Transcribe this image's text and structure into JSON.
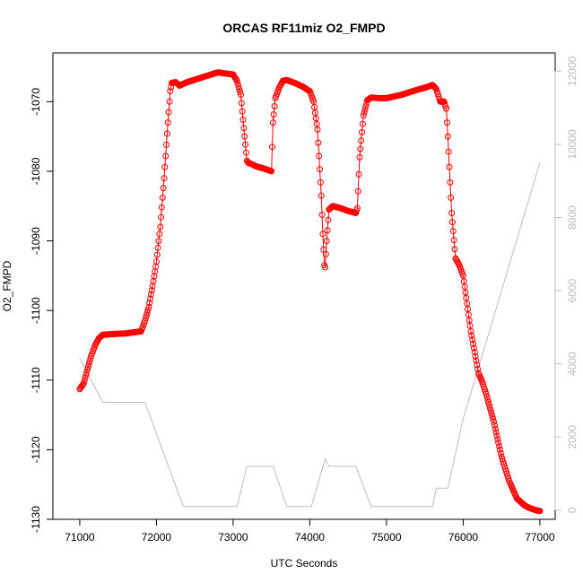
{
  "chart_data": {
    "type": "scatter",
    "title": "ORCAS RF11miz O2_FMPD",
    "xlabel": "UTC Seconds",
    "ylabel": "O2_FMPD",
    "xlim": [
      70650,
      77200
    ],
    "ylim": [
      -1130,
      -1063
    ],
    "y2lim": [
      -250,
      12500
    ],
    "x_ticks": [
      71000,
      72000,
      73000,
      74000,
      75000,
      76000,
      77000
    ],
    "y_ticks": [
      -1130,
      -1120,
      -1110,
      -1100,
      -1090,
      -1080,
      -1070
    ],
    "y2_ticks": [
      0,
      2000,
      4000,
      6000,
      8000,
      10000,
      12000
    ],
    "x_tick_labels": [
      "71000",
      "72000",
      "73000",
      "74000",
      "75000",
      "76000",
      "77000"
    ],
    "y_tick_labels": [
      "-1130",
      "-1120",
      "-1110",
      "-1100",
      "-1090",
      "-1080",
      "-1070"
    ],
    "y2_tick_labels": [
      "0",
      "2000",
      "4000",
      "6000",
      "8000",
      "10000",
      "12000"
    ],
    "colors": {
      "series": "#ff0000",
      "secondary": "#bdbdbd",
      "axis": "#000000"
    },
    "series": [
      {
        "kind": "points",
        "axis": "left",
        "x": [
          71000,
          71050,
          71100,
          71150,
          71200,
          71250,
          71300,
          71400,
          71600,
          71800,
          71850,
          71900,
          71950,
          72000,
          72050,
          72100,
          72150,
          72180,
          72200,
          72250,
          72300,
          72400,
          72600,
          72800,
          73000,
          73050,
          73100,
          73150,
          73180,
          73200,
          73250,
          73300,
          73400,
          73500,
          73520,
          73550,
          73600,
          73650,
          73700,
          73800,
          73900,
          74000,
          74050,
          74100,
          74150,
          74170,
          74190,
          74200,
          74220,
          74250,
          74300,
          74400,
          74500,
          74600,
          74620,
          74650,
          74700,
          74750,
          74800,
          74900,
          75000,
          75200,
          75400,
          75500,
          75600,
          75650,
          75700,
          75750,
          75780,
          75800,
          75850,
          75900,
          75950,
          76000,
          76100,
          76200,
          76250,
          76300,
          76400,
          76500,
          76600,
          76700,
          76800,
          76850,
          76900,
          76950,
          77000
        ],
        "y": [
          -1111.3,
          -1110.5,
          -1108.5,
          -1106.5,
          -1105,
          -1104,
          -1103.5,
          -1103.4,
          -1103.3,
          -1103,
          -1101.5,
          -1099.5,
          -1096.5,
          -1093,
          -1088,
          -1081,
          -1073,
          -1068.5,
          -1067.3,
          -1067.2,
          -1067.7,
          -1067.2,
          -1066.5,
          -1065.8,
          -1066.1,
          -1067,
          -1069,
          -1075,
          -1078.5,
          -1078.8,
          -1079,
          -1079.3,
          -1079.6,
          -1080,
          -1073,
          -1069.5,
          -1068,
          -1067,
          -1066.9,
          -1067.3,
          -1067.8,
          -1068.5,
          -1070,
          -1074,
          -1083.5,
          -1089,
          -1093.5,
          -1093.8,
          -1090,
          -1085.5,
          -1085,
          -1085.3,
          -1085.7,
          -1086,
          -1085.3,
          -1078,
          -1072,
          -1069.8,
          -1069.4,
          -1069.5,
          -1069.5,
          -1069,
          -1068.3,
          -1068,
          -1067.6,
          -1068.2,
          -1070,
          -1070,
          -1071,
          -1075,
          -1086,
          -1092.5,
          -1093.5,
          -1095,
          -1103,
          -1109,
          -1110.3,
          -1112,
          -1116,
          -1121,
          -1124.5,
          -1127,
          -1128,
          -1128.3,
          -1128.5,
          -1128.7,
          -1128.8
        ]
      },
      {
        "kind": "line",
        "axis": "right",
        "x": [
          71000,
          71300,
          71850,
          72350,
          73050,
          73180,
          73300,
          73520,
          73700,
          74000,
          74020,
          74200,
          74250,
          74600,
          74800,
          75600,
          75650,
          75700,
          75800,
          76000,
          76500,
          77000
        ],
        "y": [
          4150,
          2950,
          2950,
          100,
          100,
          1200,
          1200,
          1200,
          100,
          100,
          100,
          1400,
          1200,
          1200,
          100,
          100,
          600,
          600,
          600,
          2500,
          6000,
          9500
        ]
      }
    ]
  }
}
